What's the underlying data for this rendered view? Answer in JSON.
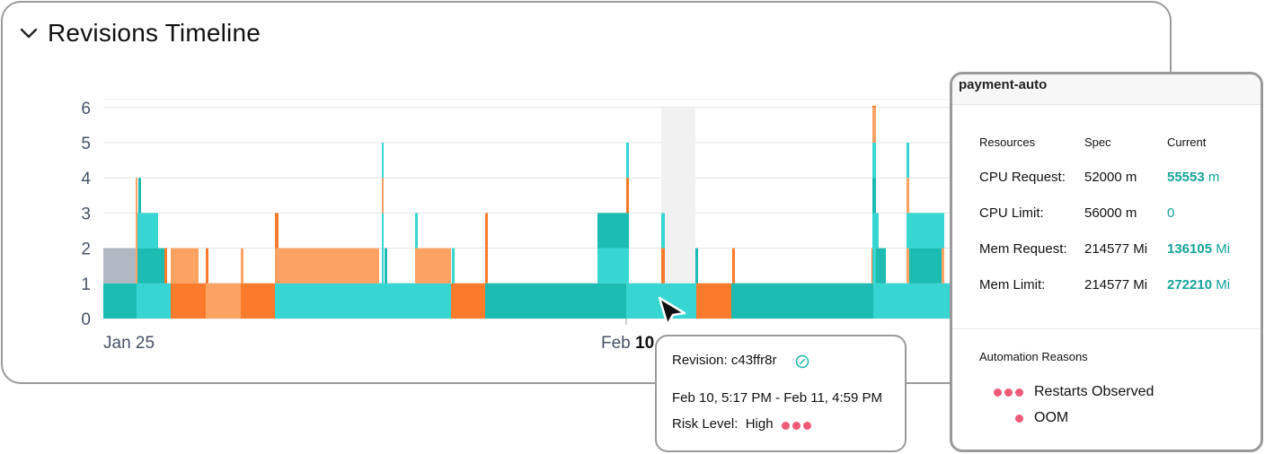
{
  "panel": {
    "title": "Revisions Timeline"
  },
  "chart_data": {
    "type": "bar",
    "yticks": [
      "0",
      "1",
      "2",
      "3",
      "4",
      "5",
      "6"
    ],
    "ylim": [
      0,
      6
    ],
    "xticks": [
      {
        "label": "Jan 25",
        "bold": ""
      },
      {
        "label": "Feb",
        "bold": "10"
      }
    ],
    "grid": true,
    "colors": {
      "tealDark": "#1cbcb2",
      "teal": "#38d6d2",
      "orange": "#fa7b2b",
      "orangeLight": "#fca262",
      "gray": "#b0b8c4"
    }
  },
  "details_panel": {
    "title": "payment-auto",
    "columns": [
      "Resources",
      "Spec",
      "Current"
    ],
    "rows": [
      {
        "label": "CPU Request:",
        "spec": "52000 m",
        "current_value": "55553",
        "current_unit": "m",
        "current_bold": true
      },
      {
        "label": "CPU Limit:",
        "spec": "56000 m",
        "current_value": "0",
        "current_unit": "",
        "current_bold": false
      },
      {
        "label": "Mem Request:",
        "spec": "214577 Mi",
        "current_value": "136105",
        "current_unit": "Mi",
        "current_bold": true
      },
      {
        "label": "Mem Limit:",
        "spec": "214577 Mi",
        "current_value": "272210",
        "current_unit": "Mi",
        "current_bold": true
      }
    ],
    "automation_title": "Automation Reasons",
    "reasons": [
      {
        "label": "Restarts Observed",
        "severity_dots": 3
      },
      {
        "label": "OOM",
        "severity_dots": 1
      }
    ]
  },
  "tooltip": {
    "revision_label": "Revision:",
    "revision_id": "c43ffr8r",
    "range": "Feb 10, 5:17 PM - Feb 11, 4:59 PM",
    "risk_label": "Risk Level:",
    "risk_value": "High",
    "risk_dots": 3
  }
}
